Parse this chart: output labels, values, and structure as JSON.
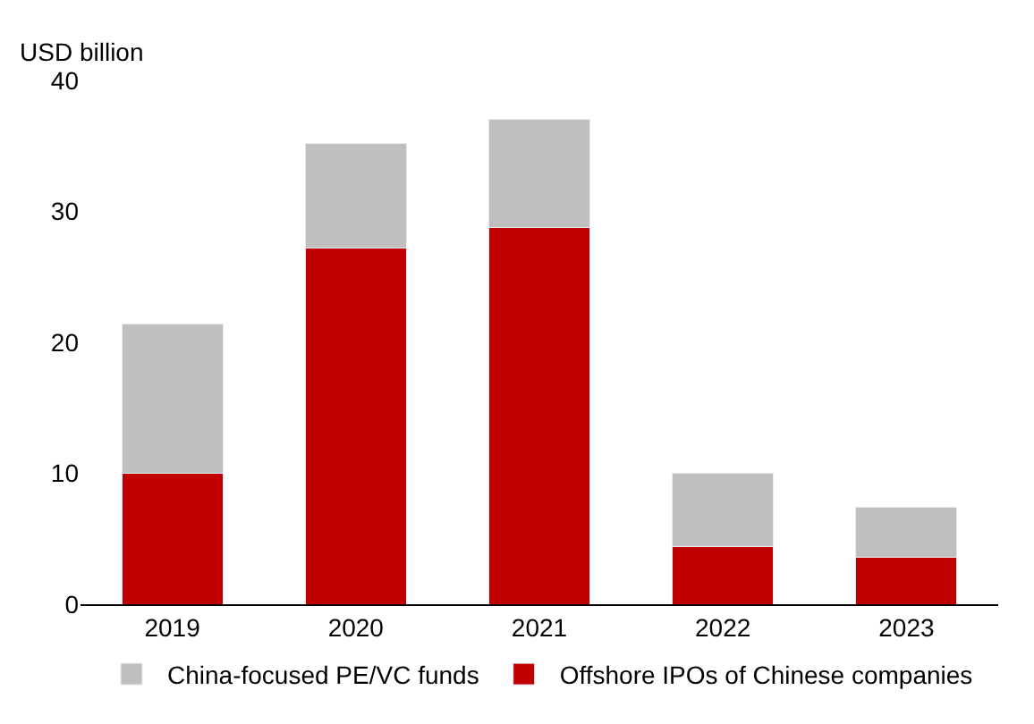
{
  "chart_data": {
    "type": "bar",
    "ylabel": "USD billion",
    "categories": [
      "2019",
      "2020",
      "2021",
      "2022",
      "2023"
    ],
    "series": [
      {
        "name": "Offshore IPOs of Chinese companies",
        "color": "#c00000",
        "values": [
          10.0,
          27.2,
          28.8,
          4.4,
          3.6
        ]
      },
      {
        "name": "China-focused PE/VC funds",
        "color": "#bfbfbf",
        "values": [
          11.4,
          8.0,
          8.2,
          5.6,
          3.8
        ]
      }
    ],
    "stacked": true,
    "ylim": [
      0,
      40
    ],
    "yticks": [
      0,
      10,
      20,
      30,
      40
    ],
    "legend": "bottom"
  }
}
